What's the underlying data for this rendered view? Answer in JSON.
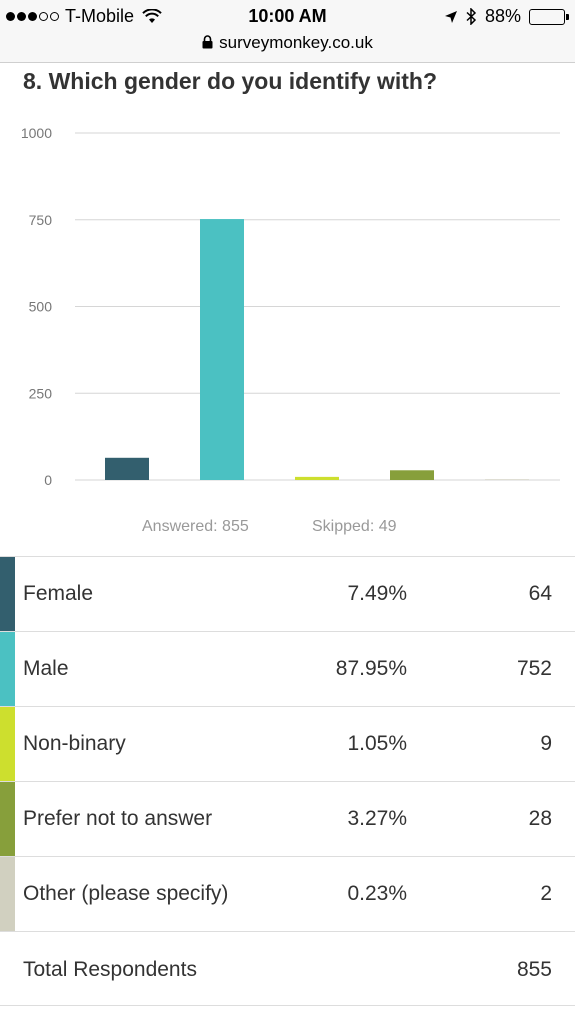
{
  "status_bar": {
    "carrier": "T-Mobile",
    "time": "10:00 AM",
    "battery": "88%",
    "battery_level": 0.88,
    "url": "surveymonkey.co.uk"
  },
  "question": "8. Which gender do you identify with?",
  "chart_data": {
    "type": "bar",
    "categories": [
      "Female",
      "Male",
      "Non-binary",
      "Prefer not to answer",
      "Other (please specify)"
    ],
    "values": [
      64,
      752,
      9,
      28,
      2
    ],
    "colors": [
      "#335f6e",
      "#4bc1c2",
      "#cddf2e",
      "#879f3b",
      "#d1d0c0"
    ],
    "ylim": [
      0,
      1000
    ],
    "yticks": [
      1000,
      750,
      500,
      250,
      0
    ],
    "grid": true
  },
  "summary": {
    "answered": "Answered: 855",
    "skipped": "Skipped: 49"
  },
  "rows": [
    {
      "label": "Female",
      "pct": "7.49%",
      "count": "64",
      "color": "#335f6e"
    },
    {
      "label": "Male",
      "pct": "87.95%",
      "count": "752",
      "color": "#4bc1c2"
    },
    {
      "label": "Non-binary",
      "pct": "1.05%",
      "count": "9",
      "color": "#cddf2e"
    },
    {
      "label": "Prefer not to answer",
      "pct": "3.27%",
      "count": "28",
      "color": "#879f3b"
    },
    {
      "label": "Other (please specify)",
      "pct": "0.23%",
      "count": "2",
      "color": "#d1d0c0"
    }
  ],
  "total": {
    "label": "Total Respondents",
    "value": "855"
  }
}
